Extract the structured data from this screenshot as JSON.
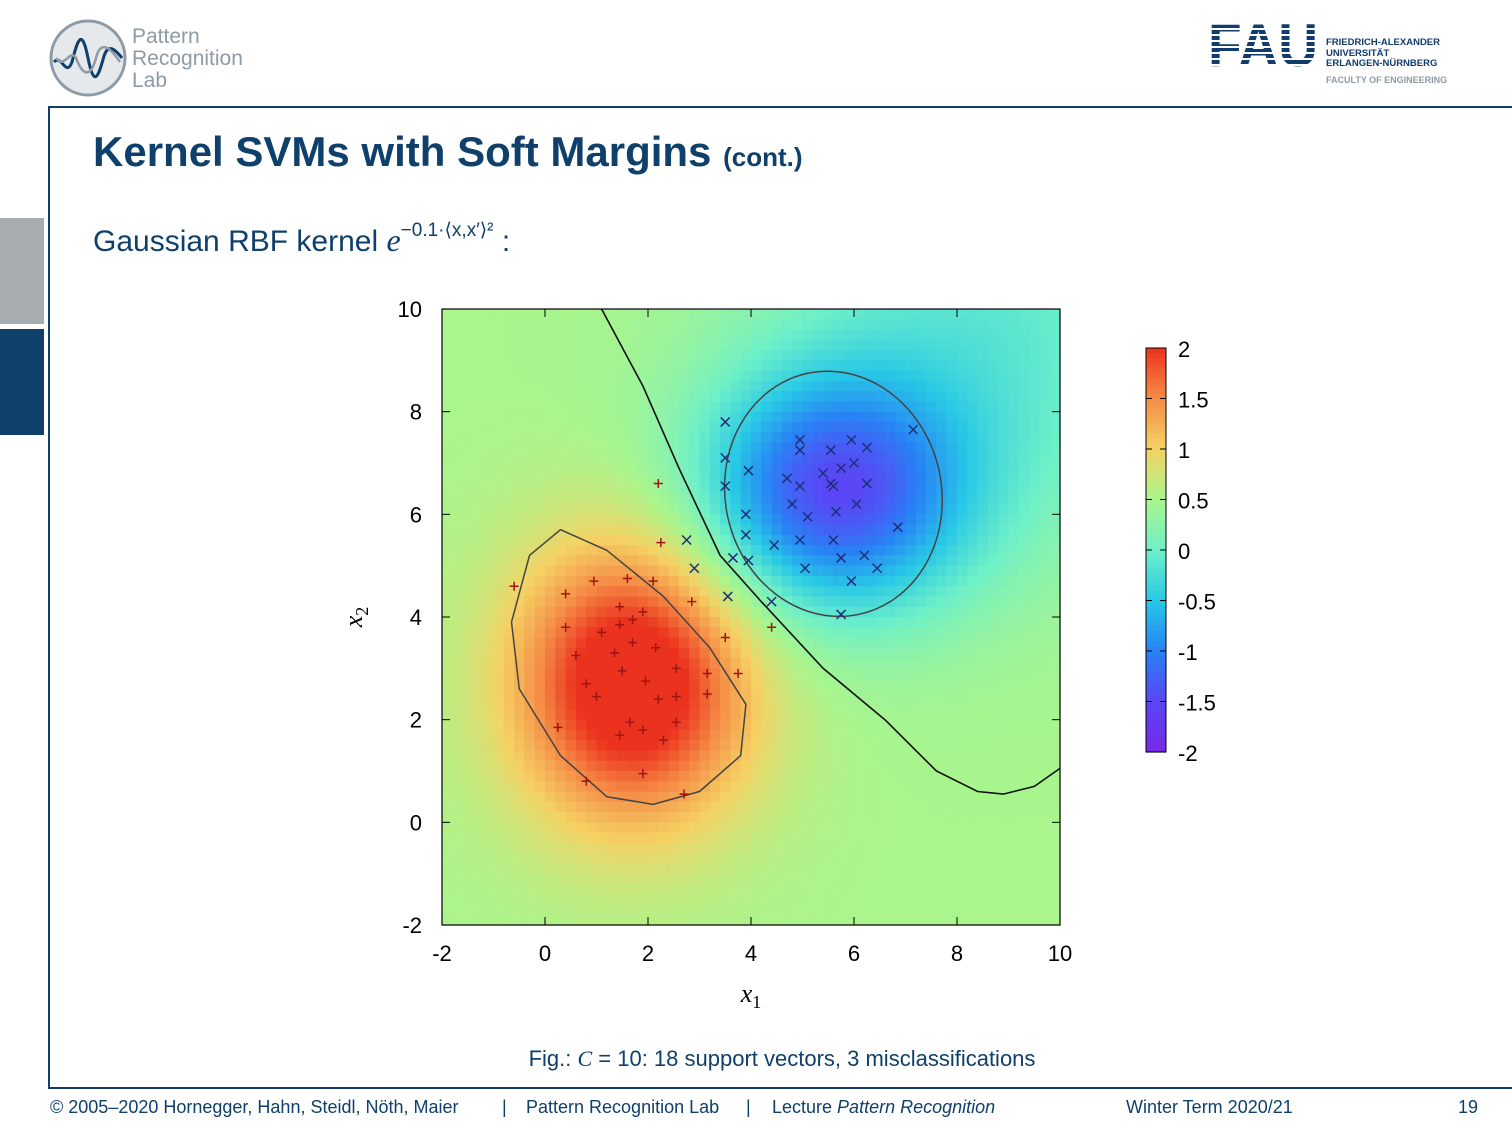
{
  "header": {
    "lab_name_lines": [
      "Pattern",
      "Recognition",
      "Lab"
    ],
    "university_lines": [
      "FRIEDRICH-ALEXANDER",
      "UNIVERSITÄT",
      "ERLANGEN-NÜRNBERG"
    ],
    "faculty": "FACULTY OF ENGINEERING",
    "fau_logo_text": "FAU"
  },
  "slide": {
    "title": "Kernel SVMs with Soft Margins",
    "title_suffix": "(cont.)",
    "formula_prefix": "Gaussian RBF kernel",
    "formula_base": "e",
    "formula_exponent": "−0.1·⟨x,x′⟩²",
    "formula_suffix": ":",
    "caption_prefix": "Fig.: ",
    "caption_var": "C",
    "caption_rest": " = 10: 18 support vectors, 3 misclassifications"
  },
  "footer": {
    "copyright": "© 2005–2020 Hornegger, Hahn, Steidl, Nöth, Maier",
    "sep": "|",
    "lab": "Pattern Recognition Lab",
    "lecture_prefix": "Lecture ",
    "lecture_name": "Pattern Recognition",
    "term": "Winter Term 2020/21",
    "page": "19"
  },
  "colors": {
    "brand": "#0f3f6b",
    "positive": "#e8361c",
    "negative": "#6a3bf2",
    "marker_plus": "#a01414",
    "marker_cross": "#1e2f7a"
  },
  "chart_data": {
    "type": "heatmap",
    "xlabel": "x1",
    "ylabel": "x2",
    "xlim": [
      -2,
      10
    ],
    "ylim": [
      -2,
      10
    ],
    "xticks": [
      -2,
      0,
      2,
      4,
      6,
      8,
      10
    ],
    "yticks": [
      -2,
      0,
      2,
      4,
      6,
      8,
      10
    ],
    "colorbar": {
      "range": [
        -2,
        2
      ],
      "ticks": [
        2,
        1.5,
        1,
        0.5,
        0,
        -0.5,
        -1,
        -1.5,
        -2
      ]
    },
    "grid": false,
    "series": [
      {
        "marker": "+",
        "points": [
          [
            -0.6,
            4.6
          ],
          [
            0.4,
            4.45
          ],
          [
            0.95,
            4.7
          ],
          [
            1.6,
            4.75
          ],
          [
            2.1,
            4.7
          ],
          [
            0.4,
            3.8
          ],
          [
            1.45,
            4.2
          ],
          [
            1.9,
            4.1
          ],
          [
            1.1,
            3.7
          ],
          [
            1.45,
            3.85
          ],
          [
            1.7,
            3.95
          ],
          [
            0.6,
            3.25
          ],
          [
            1.35,
            3.3
          ],
          [
            1.7,
            3.5
          ],
          [
            2.15,
            3.4
          ],
          [
            2.25,
            5.45
          ],
          [
            2.2,
            6.6
          ],
          [
            2.85,
            4.3
          ],
          [
            3.5,
            3.6
          ],
          [
            4.4,
            3.8
          ],
          [
            3.15,
            2.9
          ],
          [
            3.75,
            2.9
          ],
          [
            2.55,
            3.0
          ],
          [
            1.5,
            2.95
          ],
          [
            0.8,
            2.7
          ],
          [
            1.95,
            2.75
          ],
          [
            1.0,
            2.45
          ],
          [
            2.2,
            2.4
          ],
          [
            2.55,
            2.45
          ],
          [
            3.15,
            2.5
          ],
          [
            1.65,
            1.95
          ],
          [
            1.9,
            1.8
          ],
          [
            2.55,
            1.95
          ],
          [
            0.25,
            1.85
          ],
          [
            1.45,
            1.7
          ],
          [
            2.3,
            1.6
          ],
          [
            0.8,
            0.8
          ],
          [
            1.9,
            0.95
          ],
          [
            2.7,
            0.55
          ]
        ]
      },
      {
        "marker": "x",
        "points": [
          [
            3.5,
            7.8
          ],
          [
            4.95,
            7.45
          ],
          [
            5.95,
            7.45
          ],
          [
            3.5,
            7.1
          ],
          [
            4.95,
            7.25
          ],
          [
            5.55,
            7.25
          ],
          [
            6.25,
            7.3
          ],
          [
            3.95,
            6.85
          ],
          [
            5.75,
            6.9
          ],
          [
            6.0,
            7.0
          ],
          [
            4.7,
            6.7
          ],
          [
            5.4,
            6.8
          ],
          [
            7.15,
            7.65
          ],
          [
            3.5,
            6.55
          ],
          [
            4.95,
            6.55
          ],
          [
            5.6,
            6.55
          ],
          [
            5.55,
            6.6
          ],
          [
            6.25,
            6.6
          ],
          [
            4.8,
            6.2
          ],
          [
            6.05,
            6.2
          ],
          [
            3.9,
            6.0
          ],
          [
            5.1,
            5.95
          ],
          [
            5.65,
            6.05
          ],
          [
            3.9,
            5.6
          ],
          [
            6.85,
            5.75
          ],
          [
            2.75,
            5.5
          ],
          [
            4.95,
            5.5
          ],
          [
            4.45,
            5.4
          ],
          [
            5.6,
            5.5
          ],
          [
            3.65,
            5.15
          ],
          [
            3.95,
            5.1
          ],
          [
            5.75,
            5.15
          ],
          [
            6.2,
            5.2
          ],
          [
            2.9,
            4.95
          ],
          [
            5.05,
            4.95
          ],
          [
            6.45,
            4.95
          ],
          [
            5.95,
            4.7
          ],
          [
            3.55,
            4.4
          ],
          [
            4.4,
            4.3
          ],
          [
            5.75,
            4.05
          ]
        ]
      }
    ]
  }
}
